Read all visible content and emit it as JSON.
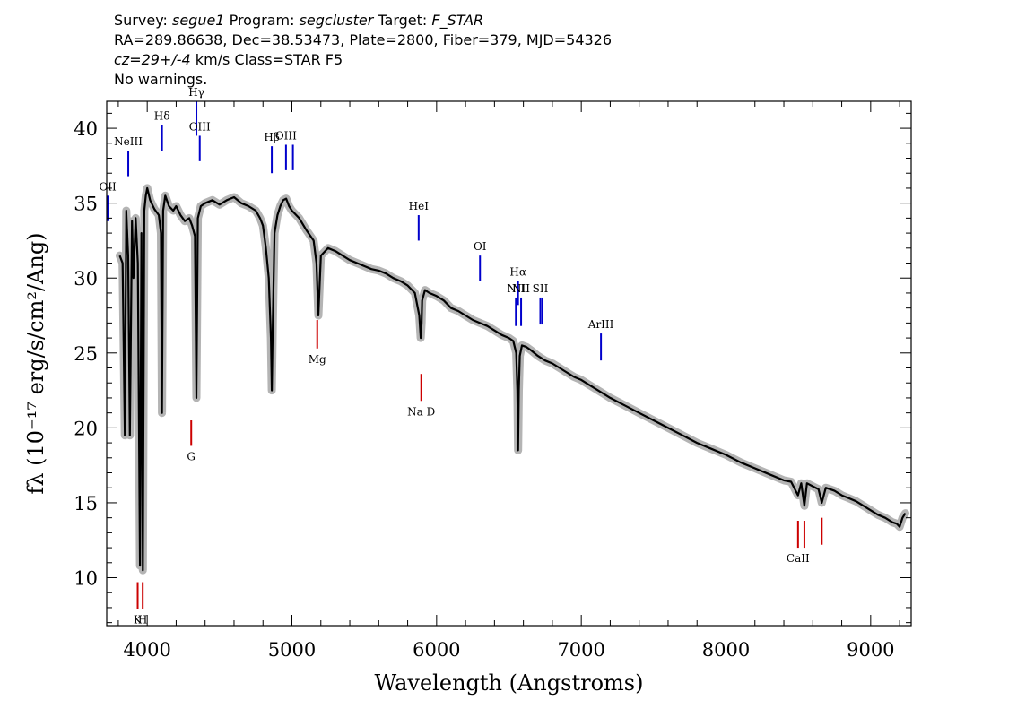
{
  "header": {
    "line1": {
      "survey_label": "Survey:",
      "survey": "segue1",
      "program_label": "Program:",
      "program": "segcluster",
      "target_label": "Target:",
      "target": "F_STAR"
    },
    "line2": "RA=289.86638, Dec=38.53473, Plate=2800, Fiber=379, MJD=54326",
    "line3": {
      "cz": "cz=29+/-4",
      "rest": " km/s Class=STAR F5"
    },
    "line4": "No warnings."
  },
  "chart_data": {
    "type": "line",
    "title": "",
    "xlabel": "Wavelength (Angstroms)",
    "ylabel": "fλ (10⁻¹⁷ erg/s/cm²/Ang)",
    "xlim": [
      3720,
      9280
    ],
    "ylim": [
      6.8,
      41.8
    ],
    "x_ticks": [
      4000,
      5000,
      6000,
      7000,
      8000,
      9000
    ],
    "y_ticks": [
      10,
      15,
      20,
      25,
      30,
      35,
      40
    ],
    "series": [
      {
        "color": "#000000",
        "x": [
          3810,
          3830,
          3845,
          3855,
          3868,
          3880,
          3895,
          3905,
          3920,
          3935,
          3950,
          3960,
          3970,
          3980,
          3990,
          4000,
          4020,
          4050,
          4080,
          4095,
          4102,
          4110,
          4125,
          4150,
          4180,
          4200,
          4230,
          4260,
          4290,
          4310,
          4330,
          4340,
          4350,
          4370,
          4400,
          4450,
          4500,
          4550,
          4600,
          4650,
          4700,
          4750,
          4780,
          4800,
          4820,
          4840,
          4855,
          4861,
          4868,
          4880,
          4900,
          4920,
          4940,
          4960,
          4980,
          5000,
          5050,
          5100,
          5150,
          5170,
          5183,
          5200,
          5250,
          5300,
          5350,
          5400,
          5450,
          5500,
          5550,
          5600,
          5650,
          5700,
          5750,
          5800,
          5850,
          5880,
          5890,
          5896,
          5900,
          5920,
          5950,
          6000,
          6050,
          6100,
          6150,
          6200,
          6250,
          6300,
          6350,
          6400,
          6450,
          6500,
          6530,
          6550,
          6558,
          6563,
          6568,
          6575,
          6590,
          6620,
          6650,
          6700,
          6750,
          6800,
          6850,
          6900,
          6950,
          7000,
          7050,
          7100,
          7150,
          7200,
          7300,
          7400,
          7500,
          7600,
          7700,
          7800,
          7900,
          8000,
          8100,
          8200,
          8300,
          8400,
          8450,
          8498,
          8520,
          8542,
          8560,
          8600,
          8640,
          8662,
          8690,
          8750,
          8800,
          8850,
          8900,
          8950,
          9000,
          9050,
          9100,
          9150,
          9180,
          9200,
          9220,
          9240
        ],
        "values": [
          31.5,
          31.0,
          19.5,
          34.5,
          31.5,
          19.5,
          33.8,
          30.0,
          34.0,
          31.0,
          10.8,
          33.0,
          10.5,
          34.5,
          35.5,
          36.0,
          35.2,
          34.6,
          34.2,
          33.0,
          21.0,
          34.5,
          35.5,
          34.8,
          34.5,
          34.8,
          34.2,
          33.8,
          34.0,
          33.5,
          32.8,
          22.0,
          34.0,
          34.8,
          35.0,
          35.2,
          34.9,
          35.2,
          35.4,
          35.0,
          34.8,
          34.5,
          34.0,
          33.5,
          32.0,
          30.0,
          26.0,
          22.5,
          27.0,
          33.0,
          34.2,
          34.8,
          35.2,
          35.3,
          34.8,
          34.5,
          34.0,
          33.2,
          32.5,
          31.0,
          27.5,
          31.5,
          32.0,
          31.8,
          31.5,
          31.2,
          31.0,
          30.8,
          30.6,
          30.5,
          30.3,
          30.0,
          29.8,
          29.5,
          29.0,
          27.5,
          26.0,
          27.0,
          28.5,
          29.2,
          29.0,
          28.8,
          28.5,
          28.0,
          27.8,
          27.5,
          27.2,
          27.0,
          26.8,
          26.5,
          26.2,
          26.0,
          25.8,
          25.0,
          22.5,
          18.5,
          22.5,
          24.8,
          25.5,
          25.4,
          25.2,
          24.8,
          24.5,
          24.3,
          24.0,
          23.7,
          23.4,
          23.2,
          22.9,
          22.6,
          22.3,
          22.0,
          21.5,
          21.0,
          20.5,
          20.0,
          19.5,
          19.0,
          18.6,
          18.2,
          17.7,
          17.3,
          16.9,
          16.5,
          16.4,
          15.5,
          16.3,
          14.8,
          16.3,
          16.1,
          15.9,
          15.0,
          16.0,
          15.8,
          15.5,
          15.3,
          15.1,
          14.8,
          14.5,
          14.2,
          14.0,
          13.7,
          13.6,
          13.4,
          14.0,
          14.3
        ]
      }
    ],
    "emission_lines": [
      {
        "label": "OII",
        "x": 3727,
        "y0": 33.8,
        "y1": 35.5,
        "color": "#0000cc"
      },
      {
        "label": "NeIII",
        "x": 3869,
        "y0": 36.8,
        "y1": 38.5,
        "color": "#0000cc"
      },
      {
        "label": "Hδ",
        "x": 4102,
        "y0": 38.5,
        "y1": 40.2,
        "color": "#0000cc"
      },
      {
        "label": "Hγ",
        "x": 4340,
        "y0": 39.5,
        "y1": 41.8,
        "color": "#0000cc"
      },
      {
        "label": "OIII",
        "x": 4363,
        "y0": 37.8,
        "y1": 39.5,
        "color": "#0000cc"
      },
      {
        "label": "Hβ",
        "x": 4861,
        "y0": 37.0,
        "y1": 38.8,
        "color": "#0000cc"
      },
      {
        "label": "OIII",
        "x": 4959,
        "y0": 37.2,
        "y1": 38.9,
        "color": "#0000cc"
      },
      {
        "label": "",
        "x": 5007,
        "y0": 37.2,
        "y1": 38.9,
        "color": "#0000cc"
      },
      {
        "label": "HeI",
        "x": 5876,
        "y0": 32.5,
        "y1": 34.2,
        "color": "#0000cc"
      },
      {
        "label": "OI",
        "x": 6300,
        "y0": 29.8,
        "y1": 31.5,
        "color": "#0000cc"
      },
      {
        "label": "NII",
        "x": 6548,
        "y0": 26.8,
        "y1": 28.7,
        "color": "#0000cc"
      },
      {
        "label": "Hα",
        "x": 6563,
        "y0": 28.2,
        "y1": 29.8,
        "color": "#0000cc"
      },
      {
        "label": "NII",
        "x": 6584,
        "y0": 26.8,
        "y1": 28.7,
        "color": "#0000cc"
      },
      {
        "label": "SII",
        "x": 6717,
        "y0": 26.9,
        "y1": 28.7,
        "color": "#0000cc"
      },
      {
        "label": "",
        "x": 6731,
        "y0": 26.9,
        "y1": 28.7,
        "color": "#0000cc"
      },
      {
        "label": "ArIII",
        "x": 7136,
        "y0": 24.5,
        "y1": 26.3,
        "color": "#0000cc"
      }
    ],
    "absorption_lines": [
      {
        "label": "K",
        "x": 3934,
        "y0": 7.9,
        "y1": 9.7,
        "color": "#cc0000"
      },
      {
        "label": "H",
        "x": 3969,
        "y0": 7.9,
        "y1": 9.7,
        "color": "#cc0000"
      },
      {
        "label": "G",
        "x": 4304,
        "y0": 18.8,
        "y1": 20.5,
        "color": "#cc0000"
      },
      {
        "label": "Mg",
        "x": 5175,
        "y0": 25.3,
        "y1": 27.2,
        "color": "#cc0000"
      },
      {
        "label": "Na D",
        "x": 5894,
        "y0": 21.8,
        "y1": 23.6,
        "color": "#cc0000"
      },
      {
        "label": "CaII",
        "x": 8498,
        "y0": 12.0,
        "y1": 13.8,
        "color": "#cc0000"
      },
      {
        "label": "",
        "x": 8542,
        "y0": 12.0,
        "y1": 13.8,
        "color": "#cc0000"
      },
      {
        "label": "",
        "x": 8662,
        "y0": 12.2,
        "y1": 14.0,
        "color": "#cc0000"
      }
    ],
    "grid": false,
    "legend": "none"
  },
  "colors": {
    "spectrum": "#000000",
    "error_band": "#b4b4b4",
    "emission": "#0000cc",
    "absorption": "#cc0000"
  }
}
